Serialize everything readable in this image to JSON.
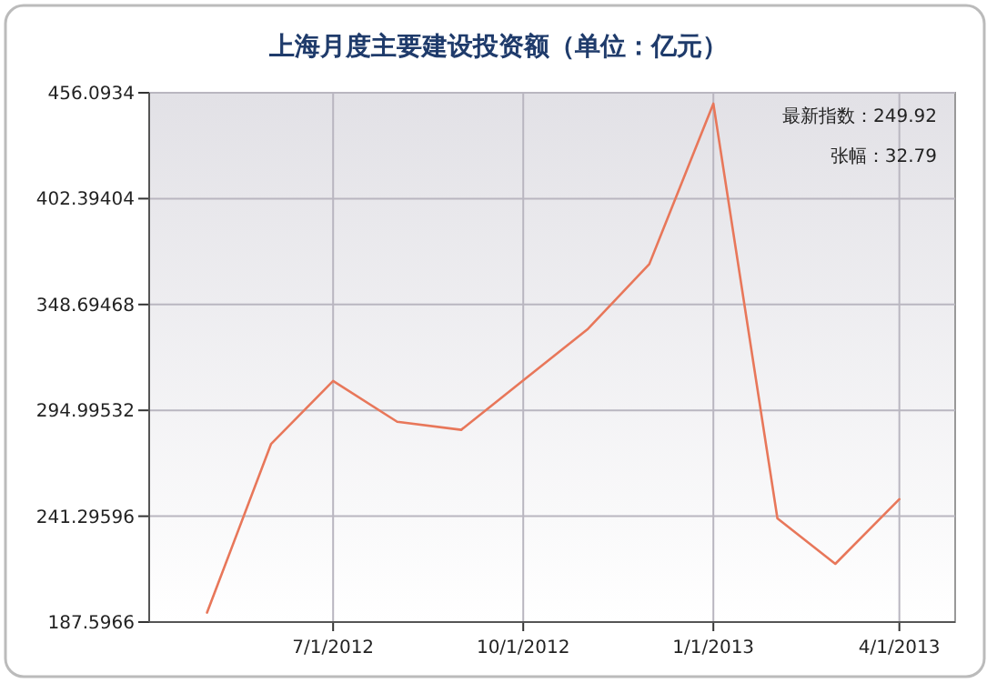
{
  "chart_data": {
    "type": "line",
    "title": "上海月度主要建设投资额（单位：亿元）",
    "x": [
      "2012-05-01",
      "2012-06-01",
      "2012-07-01",
      "2012-08-01",
      "2012-09-01",
      "2012-10-01",
      "2012-11-01",
      "2012-12-01",
      "2013-01-01",
      "2013-02-01",
      "2013-03-01",
      "2013-04-01"
    ],
    "series": [
      {
        "color": "#e8775a",
        "values": [
          192.4,
          278.0,
          309.9,
          289.2,
          285.1,
          310.2,
          336.0,
          369.2,
          450.6,
          240.2,
          217.13,
          249.92
        ]
      }
    ],
    "xlim": [
      "2012-04-03",
      "2013-04-28"
    ],
    "xticks": [
      {
        "value": "2012-07-01",
        "label": "7/1/2012"
      },
      {
        "value": "2012-10-01",
        "label": "10/1/2012"
      },
      {
        "value": "2013-01-01",
        "label": "1/1/2013"
      },
      {
        "value": "2013-04-01",
        "label": "4/1/2013"
      }
    ],
    "ylim": [
      187.5966,
      456.0934
    ],
    "yticks": [
      187.5966,
      241.29596,
      294.99532,
      348.69468,
      402.39404,
      456.0934
    ],
    "grid": true,
    "annotations": [
      "最新指数：249.92",
      "张幅：32.79"
    ]
  }
}
